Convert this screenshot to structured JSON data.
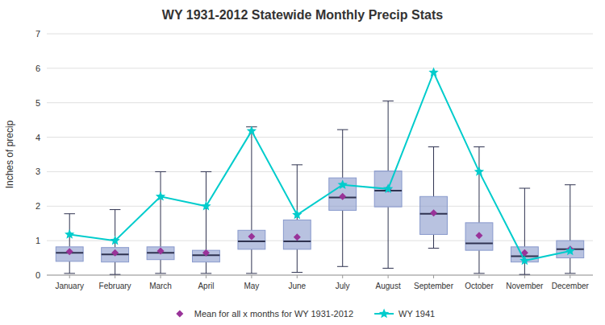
{
  "chart_data": {
    "type": "box",
    "title": "WY 1931-2012 Statewide Monthly Precip Stats",
    "ylabel": "Inches of precip",
    "categories": [
      "January",
      "February",
      "March",
      "April",
      "May",
      "June",
      "July",
      "August",
      "September",
      "October",
      "November",
      "December"
    ],
    "boxes": {
      "color": "#8899cc",
      "medians": [
        0.65,
        0.6,
        0.65,
        0.58,
        0.98,
        0.98,
        2.25,
        2.45,
        1.78,
        0.92,
        0.55,
        0.75
      ],
      "q1": [
        0.4,
        0.38,
        0.45,
        0.38,
        0.75,
        0.75,
        1.88,
        1.98,
        1.18,
        0.72,
        0.38,
        0.5
      ],
      "q3": [
        0.82,
        0.8,
        0.82,
        0.72,
        1.3,
        1.6,
        2.82,
        3.02,
        2.28,
        1.52,
        0.82,
        1.0
      ],
      "whislo": [
        0.05,
        0.02,
        0.05,
        0.05,
        0.05,
        0.08,
        0.25,
        0.2,
        0.78,
        0.05,
        0.02,
        0.05
      ],
      "whishi": [
        1.78,
        1.9,
        3.0,
        3.0,
        4.3,
        3.2,
        4.22,
        5.05,
        3.72,
        3.72,
        2.52,
        2.62
      ]
    },
    "series": [
      {
        "name": "Mean for all x months for WY 1931-2012",
        "type": "scatter",
        "marker": "diamond",
        "color": "#993399",
        "values": [
          0.68,
          0.65,
          0.7,
          0.65,
          1.12,
          1.1,
          2.28,
          2.5,
          1.8,
          1.15,
          0.65,
          0.75
        ]
      },
      {
        "name": "WY 1941",
        "type": "line",
        "marker": "star",
        "color": "#00cccc",
        "values": [
          1.18,
          1.0,
          2.28,
          2.0,
          4.18,
          1.75,
          2.62,
          2.5,
          5.88,
          3.0,
          0.42,
          0.7
        ]
      }
    ],
    "ylim": [
      0,
      7
    ],
    "yticks": [
      0,
      1,
      2,
      3,
      4,
      5,
      6,
      7
    ],
    "grid": true,
    "legend": "bottom"
  }
}
